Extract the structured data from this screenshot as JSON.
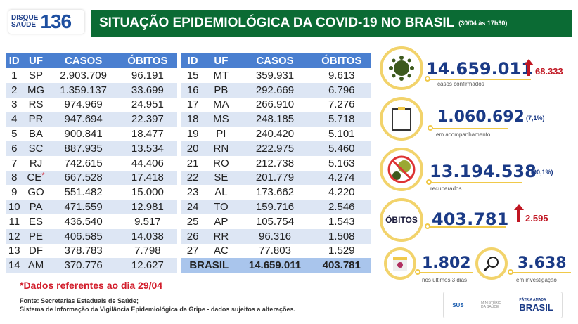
{
  "logo": {
    "line1": "DISQUE",
    "line2": "SAÚDE",
    "number": "136"
  },
  "header": {
    "title": "SITUAÇÃO EPIDEMIOLÓGICA DA COVID-19 NO BRASIL",
    "date": "(30/04 às 17h30)"
  },
  "table": {
    "columns": [
      "ID",
      "UF",
      "CASOS",
      "ÓBITOS"
    ],
    "left": [
      [
        "1",
        "SP",
        "2.903.709",
        "96.191"
      ],
      [
        "2",
        "MG",
        "1.359.137",
        "33.699"
      ],
      [
        "3",
        "RS",
        "974.969",
        "24.951"
      ],
      [
        "4",
        "PR",
        "947.694",
        "22.397"
      ],
      [
        "5",
        "BA",
        "900.841",
        "18.477"
      ],
      [
        "6",
        "SC",
        "887.935",
        "13.534"
      ],
      [
        "7",
        "RJ",
        "742.615",
        "44.406"
      ],
      [
        "8",
        "CE",
        "667.528",
        "17.418"
      ],
      [
        "9",
        "GO",
        "551.482",
        "15.000"
      ],
      [
        "10",
        "PA",
        "471.559",
        "12.981"
      ],
      [
        "11",
        "ES",
        "436.540",
        "9.517"
      ],
      [
        "12",
        "PE",
        "406.585",
        "14.038"
      ],
      [
        "13",
        "DF",
        "378.783",
        "7.798"
      ],
      [
        "14",
        "AM",
        "370.776",
        "12.627"
      ]
    ],
    "right": [
      [
        "15",
        "MT",
        "359.931",
        "9.613"
      ],
      [
        "16",
        "PB",
        "292.669",
        "6.796"
      ],
      [
        "17",
        "MA",
        "266.910",
        "7.276"
      ],
      [
        "18",
        "MS",
        "248.185",
        "5.718"
      ],
      [
        "19",
        "PI",
        "240.420",
        "5.101"
      ],
      [
        "20",
        "RN",
        "222.975",
        "5.460"
      ],
      [
        "21",
        "RO",
        "212.738",
        "5.163"
      ],
      [
        "22",
        "SE",
        "201.779",
        "4.274"
      ],
      [
        "23",
        "AL",
        "173.662",
        "4.220"
      ],
      [
        "24",
        "TO",
        "159.716",
        "2.546"
      ],
      [
        "25",
        "AP",
        "105.754",
        "1.543"
      ],
      [
        "26",
        "RR",
        "96.316",
        "1.508"
      ],
      [
        "27",
        "AC",
        "77.803",
        "1.529"
      ]
    ],
    "ce_mark": "*",
    "total": {
      "label": "BRASIL",
      "casos": "14.659.011",
      "obitos": "403.781"
    }
  },
  "note": "*Dados referentes ao dia 29/04",
  "source": {
    "line1": "Fonte: Secretarias Estaduais de Saúde;",
    "line2": "Sistema de Informação da Vigilância Epidemiológica da Gripe - dados sujeitos a alterações."
  },
  "stats": {
    "confirmed": {
      "value": "14.659.011",
      "label": "casos confirmados",
      "increase": "68.333",
      "icon": "virus-icon"
    },
    "monitoring": {
      "value": "1.060.692",
      "pct": "(7,1%)",
      "label": "em acompanhamento",
      "icon": "clipboard-icon"
    },
    "recovered": {
      "value": "13.194.538",
      "pct": "(90,1%)",
      "label": "recuperados",
      "icon": "no-virus-icon"
    },
    "deaths": {
      "title": "ÓBITOS",
      "value": "403.781",
      "increase": "2.595"
    },
    "last3": {
      "value": "1.802",
      "label": "nos últimos 3 dias",
      "icon": "calendar-icon"
    },
    "investigation": {
      "value": "3.638",
      "label": "em investigação",
      "icon": "magnifier-icon"
    }
  },
  "footer": {
    "sus": "SUS",
    "ministry": "MINISTÉRIO DA SAÚDE",
    "gov_top": "PÁTRIA AMADA",
    "gov": "BRASIL"
  },
  "colors": {
    "banner": "#0b6b34",
    "table_header": "#4a7fd0",
    "accent_red": "#c01622",
    "number_blue": "#1a3a86",
    "ring": "#f2d36b"
  }
}
